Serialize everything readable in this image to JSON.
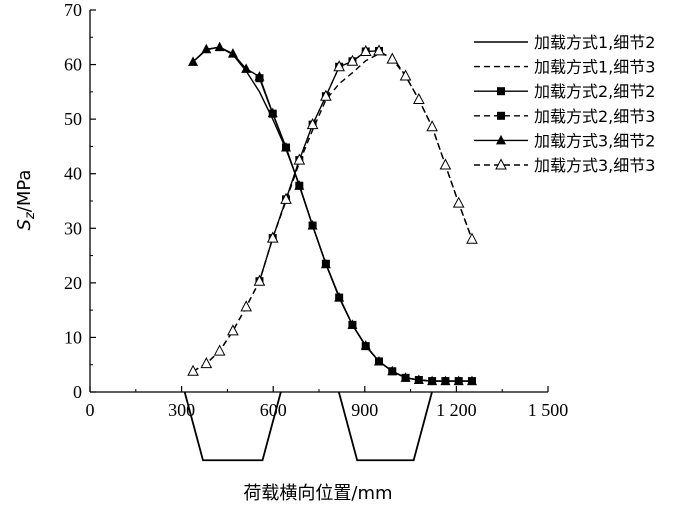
{
  "chart_data": {
    "type": "line",
    "xlabel": "荷载横向位置/mm",
    "ylabel": "Sz/MPa",
    "xlim": [
      0,
      1500
    ],
    "ylim": [
      0,
      70
    ],
    "x_ticks": [
      0,
      300,
      600,
      900,
      1200,
      1500
    ],
    "x_tick_labels": [
      "0",
      "300",
      "600",
      "900",
      "1 200",
      "1 500"
    ],
    "y_ticks": [
      0,
      10,
      20,
      30,
      40,
      50,
      60,
      70
    ],
    "y_tick_labels": [
      "0",
      "10",
      "20",
      "30",
      "40",
      "50",
      "60",
      "70"
    ],
    "legend_position": "top-right",
    "series": [
      {
        "name": "加载方式1,细节2",
        "line": "solid",
        "marker": "none",
        "color": "#000000",
        "x": [
          337.5,
          381,
          424.5,
          468,
          511.5,
          555,
          598.5,
          642,
          685.5,
          729,
          772.5,
          816,
          859.5,
          903,
          946.5,
          990,
          1033.5,
          1077,
          1120.5,
          1164,
          1207.5,
          1251
        ],
        "y": [
          60.5,
          62.7,
          63.2,
          61.8,
          58.8,
          55,
          50,
          44.5,
          38,
          30.5,
          23.5,
          17.5,
          12.3,
          8.5,
          5.6,
          3.8,
          2.6,
          2.2,
          2.0,
          2.0,
          2.0,
          2.0
        ]
      },
      {
        "name": "加载方式1,细节3",
        "line": "dashed",
        "marker": "none",
        "color": "#000000",
        "x": [
          337.5,
          381,
          424.5,
          468,
          511.5,
          555,
          598.5,
          642,
          685.5,
          729,
          772.5,
          816,
          859.5,
          903,
          946.5,
          990,
          1033.5,
          1077,
          1120.5,
          1164,
          1207.5,
          1251
        ],
        "y": [
          3.8,
          5.2,
          7.5,
          11.2,
          15.6,
          20.3,
          28.2,
          35,
          42,
          48,
          53.5,
          56.5,
          58.5,
          60.7,
          62,
          61.5,
          57.9,
          53.6,
          48.6,
          41.6,
          34.6,
          28
        ]
      },
      {
        "name": "加载方式2,细节2",
        "line": "solid",
        "marker": "square-filled",
        "color": "#000000",
        "x": [
          555,
          598.5,
          642,
          685.5,
          729,
          772.5,
          816,
          859.5,
          903,
          946.5,
          990,
          1033.5,
          1077,
          1120.5,
          1164,
          1207.5,
          1251
        ],
        "y": [
          57.5,
          51,
          44.8,
          37.8,
          30.5,
          23.5,
          17.3,
          12.3,
          8.4,
          5.6,
          3.8,
          2.6,
          2.2,
          2.0,
          2.0,
          2.0,
          2.0
        ]
      },
      {
        "name": "加载方式2,细节3",
        "line": "dashed",
        "marker": "square-filled",
        "color": "#000000",
        "x": [
          555,
          598.5,
          642,
          685.5,
          729,
          772.5,
          816,
          859.5,
          903,
          946.5
        ],
        "y": [
          20.3,
          28.2,
          35.3,
          42.5,
          49,
          54.2,
          59.6,
          60.6,
          62.4,
          62.5
        ]
      },
      {
        "name": "加载方式3,细节2",
        "line": "solid",
        "marker": "triangle-filled",
        "color": "#000000",
        "x": [
          337.5,
          381,
          424.5,
          468,
          511.5,
          555,
          598.5,
          642,
          685.5,
          729,
          772.5,
          816,
          859.5,
          903,
          946.5,
          990,
          1033.5,
          1077,
          1120.5,
          1164,
          1207.5,
          1251
        ],
        "y": [
          60.5,
          62.8,
          63.2,
          62.0,
          59.2,
          57.8,
          51.1,
          44.8,
          37.8,
          30.5,
          23.4,
          17.3,
          12.3,
          8.5,
          5.6,
          3.8,
          2.6,
          2.2,
          2.0,
          2.0,
          2.0,
          2.0
        ]
      },
      {
        "name": "加载方式3,细节3",
        "line": "dashed",
        "marker": "triangle-open",
        "color": "#000000",
        "x": [
          337.5,
          381,
          424.5,
          468,
          511.5,
          555,
          598.5,
          642,
          685.5,
          729,
          772.5,
          816,
          859.5,
          903,
          946.5,
          990,
          1033.5,
          1077,
          1120.5,
          1164,
          1207.5,
          1251
        ],
        "y": [
          3.8,
          5.2,
          7.5,
          11.2,
          15.6,
          20.3,
          28.2,
          35.3,
          42.5,
          49.0,
          54.2,
          59.6,
          60.6,
          62.4,
          62.5,
          61.0,
          57.9,
          53.6,
          48.6,
          41.6,
          34.6,
          28.0
        ]
      }
    ],
    "trapezoids": [
      {
        "top_left": 310,
        "top_right": 625,
        "bottom_left": 370,
        "bottom_right": 565,
        "depth": 12.5
      },
      {
        "top_left": 815,
        "top_right": 1120,
        "bottom_left": 875,
        "bottom_right": 1060,
        "depth": 12.5
      }
    ]
  }
}
